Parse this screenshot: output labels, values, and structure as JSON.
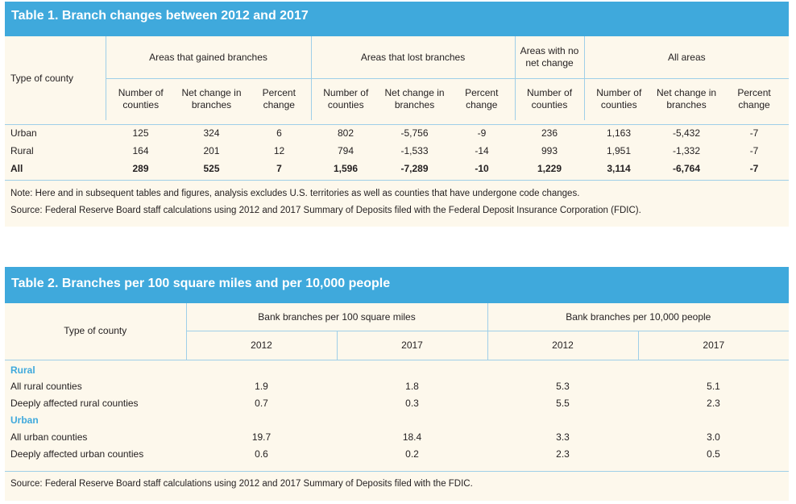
{
  "table1": {
    "title": "Table 1. Branch changes between 2012 and 2017",
    "row_header": "Type of county",
    "groups": [
      "Areas that gained branches",
      "Areas that lost branches",
      "Areas with no net change",
      "All areas"
    ],
    "subheaders": {
      "num_counties": "Number of counties",
      "net_change": "Net change in branches",
      "percent": "Percent change"
    },
    "rows": [
      {
        "label": "Urban",
        "values": [
          "125",
          "324",
          "6",
          "802",
          "-5,756",
          "-9",
          "236",
          "1,163",
          "-5,432",
          "-7"
        ]
      },
      {
        "label": "Rural",
        "values": [
          "164",
          "201",
          "12",
          "794",
          "-1,533",
          "-14",
          "993",
          "1,951",
          "-1,332",
          "-7"
        ]
      },
      {
        "label": "All",
        "values": [
          "289",
          "525",
          "7",
          "1,596",
          "-7,289",
          "-10",
          "1,229",
          "3,114",
          "-6,764",
          "-7"
        ]
      }
    ],
    "note": "Note: Here and in subsequent tables and figures, analysis excludes U.S. territories as well as counties that have undergone code changes.",
    "source": "Source: Federal Reserve Board staff calculations using 2012 and 2017 Summary of Deposits filed with the Federal Deposit Insurance Corporation (FDIC)."
  },
  "table2": {
    "title": "Table 2. Branches per 100 square miles and per 10,000 people",
    "row_header": "Type of county",
    "groups": [
      "Bank branches per 100 square miles",
      "Bank branches per 10,000 people"
    ],
    "years": [
      "2012",
      "2017",
      "2012",
      "2017"
    ],
    "sections": [
      {
        "label": "Rural",
        "rows": [
          {
            "label": "All rural counties",
            "values": [
              "1.9",
              "1.8",
              "5.3",
              "5.1"
            ]
          },
          {
            "label": "Deeply affected rural counties",
            "values": [
              "0.7",
              "0.3",
              "5.5",
              "2.3"
            ]
          }
        ]
      },
      {
        "label": "Urban",
        "rows": [
          {
            "label": "All urban counties",
            "values": [
              "19.7",
              "18.4",
              "3.3",
              "3.0"
            ]
          },
          {
            "label": "Deeply affected urban counties",
            "values": [
              "0.6",
              "0.2",
              "2.3",
              "0.5"
            ]
          }
        ]
      }
    ],
    "source": "Source: Federal Reserve Board staff calculations using 2012 and 2017 Summary of Deposits filed with the FDIC."
  },
  "colors": {
    "accent": "#3fa9dc",
    "panel": "#fdf8ec",
    "rule": "#9fcfe8",
    "text": "#231f20"
  }
}
